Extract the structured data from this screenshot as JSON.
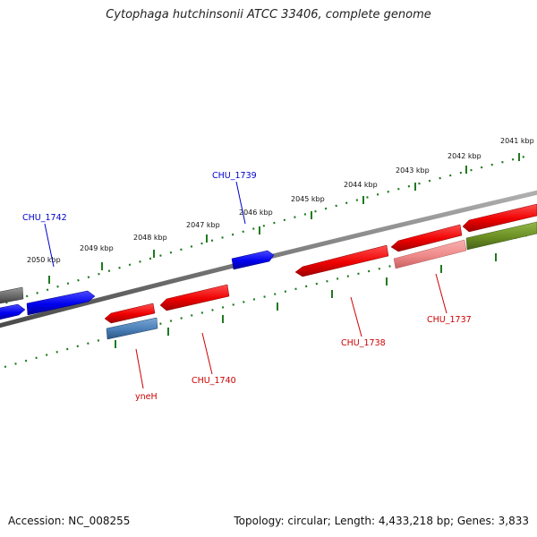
{
  "title": "Cytophaga hutchinsonii ATCC 33406, complete genome",
  "footer": {
    "accession": "Accession: NC_008255",
    "summary": "Topology: circular; Length: 4,433,218 bp; Genes: 3,833"
  },
  "ticks": [
    "2041 kbp",
    "2042 kbp",
    "2043 kbp",
    "2044 kbp",
    "2045 kbp",
    "2046 kbp",
    "2047 kbp",
    "2048 kbp",
    "2049 kbp",
    "2050 kbp"
  ],
  "gene_labels": {
    "chu_1739": "CHU_1739",
    "chu_1742": "CHU_1742",
    "chu_1737": "CHU_1737",
    "chu_1738": "CHU_1738",
    "chu_1740": "CHU_1740",
    "yneh": "yneH"
  },
  "colors": {
    "backbone": "#7a7a7a",
    "tick_track": "#1f7a1f",
    "forward_gene": "#0000ee",
    "reverse_gene": "#ee0000",
    "reverse_gene_light": "#f08a8a",
    "steelblue_gene": "#4a7fb8",
    "olive_gene": "#6b8e23",
    "gray_gene": "#666666",
    "label_blue": "#0000cc",
    "label_red": "#cc0000"
  }
}
